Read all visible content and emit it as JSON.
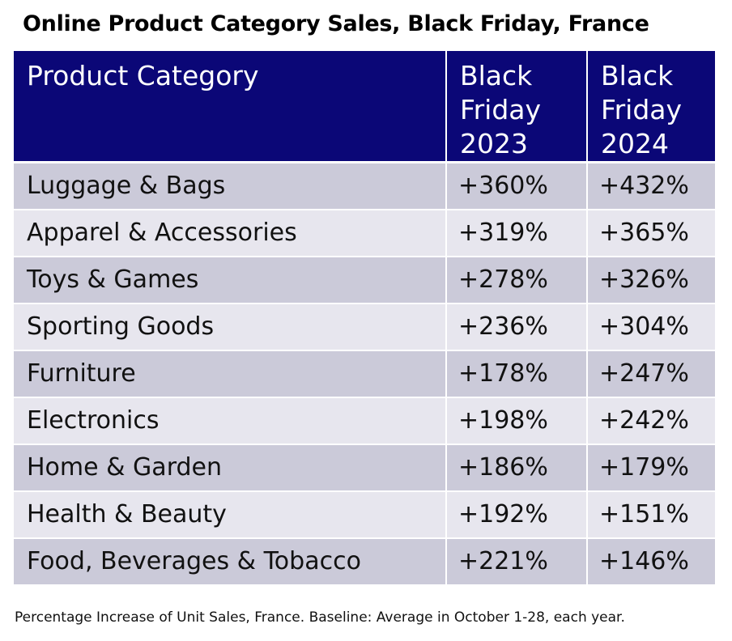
{
  "chart_data": {
    "type": "table",
    "title": "Online Product Category Sales, Black Friday, France",
    "columns": [
      "Product Category",
      "Black\nFriday\n2023",
      "Black\nFriday\n2024"
    ],
    "rows": [
      {
        "category": "Luggage & Bags",
        "bf2023": "+360%",
        "bf2024": "+432%"
      },
      {
        "category": "Apparel & Accessories",
        "bf2023": "+319%",
        "bf2024": "+365%"
      },
      {
        "category": "Toys & Games",
        "bf2023": "+278%",
        "bf2024": "+326%"
      },
      {
        "category": "Sporting Goods",
        "bf2023": "+236%",
        "bf2024": "+304%"
      },
      {
        "category": "Furniture",
        "bf2023": "+178%",
        "bf2024": "+247%"
      },
      {
        "category": "Electronics",
        "bf2023": "+198%",
        "bf2024": "+242%"
      },
      {
        "category": "Home & Garden",
        "bf2023": "+186%",
        "bf2024": "+179%"
      },
      {
        "category": "Health & Beauty",
        "bf2023": "+192%",
        "bf2024": "+151%"
      },
      {
        "category": "Food, Beverages & Tobacco",
        "bf2023": "+221%",
        "bf2024": "+146%"
      }
    ],
    "footnote": "Percentage Increase of Unit Sales, France. Baseline: Average in October 1-28, each year."
  },
  "colors": {
    "header_bg": "#0b0777",
    "header_text": "#ffffff",
    "row_odd": "#cbcad9",
    "row_even": "#e7e6ee"
  }
}
